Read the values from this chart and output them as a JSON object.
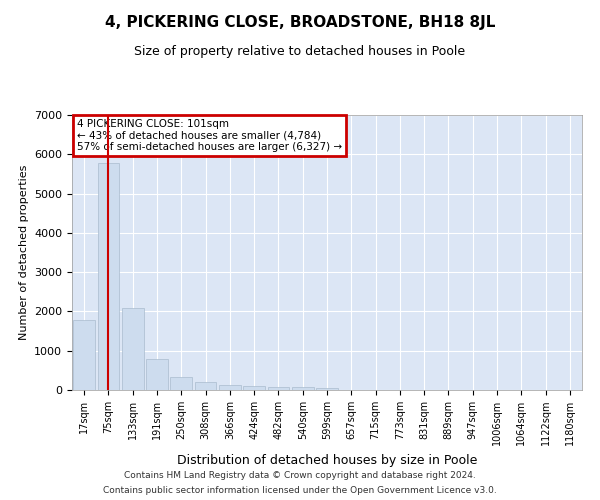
{
  "title": "4, PICKERING CLOSE, BROADSTONE, BH18 8JL",
  "subtitle": "Size of property relative to detached houses in Poole",
  "xlabel": "Distribution of detached houses by size in Poole",
  "ylabel": "Number of detached properties",
  "bar_color": "#cddcee",
  "bar_edgecolor": "#aabcce",
  "background_color": "#dce6f5",
  "grid_color": "#ffffff",
  "vline_color": "#cc0000",
  "vline_x": 1.0,
  "annotation_line1": "4 PICKERING CLOSE: 101sqm",
  "annotation_line2": "← 43% of detached houses are smaller (4,784)",
  "annotation_line3": "57% of semi-detached houses are larger (6,327) →",
  "annotation_box_edgecolor": "#cc0000",
  "footer1": "Contains HM Land Registry data © Crown copyright and database right 2024.",
  "footer2": "Contains public sector information licensed under the Open Government Licence v3.0.",
  "categories": [
    "17sqm",
    "75sqm",
    "133sqm",
    "191sqm",
    "250sqm",
    "308sqm",
    "366sqm",
    "424sqm",
    "482sqm",
    "540sqm",
    "599sqm",
    "657sqm",
    "715sqm",
    "773sqm",
    "831sqm",
    "889sqm",
    "947sqm",
    "1006sqm",
    "1064sqm",
    "1122sqm",
    "1180sqm"
  ],
  "values": [
    1780,
    5780,
    2080,
    790,
    340,
    195,
    115,
    100,
    80,
    75,
    50,
    0,
    0,
    0,
    0,
    0,
    0,
    0,
    0,
    0,
    0
  ],
  "ylim": [
    0,
    7000
  ],
  "yticks": [
    0,
    1000,
    2000,
    3000,
    4000,
    5000,
    6000,
    7000
  ],
  "fig_width": 6.0,
  "fig_height": 5.0,
  "dpi": 100
}
